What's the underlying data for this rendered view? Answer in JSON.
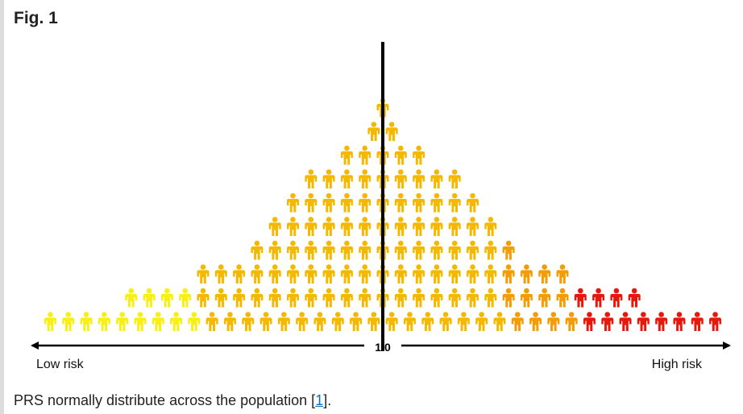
{
  "figure": {
    "label": "Fig. 1",
    "axis": {
      "center_label": "1.0",
      "left_label": "Low risk",
      "right_label": "High risk"
    },
    "rows_bottom_to_top": [
      38,
      29,
      21,
      15,
      13,
      11,
      9,
      5,
      2,
      1
    ],
    "colors": {
      "low": "#f7ef16",
      "mid": "#f5b800",
      "elevated": "#f39c06",
      "high": "#e8170b",
      "center_line": "#000000"
    }
  },
  "caption": {
    "text": "PRS normally distribute across the population [",
    "ref": "1",
    "suffix": "]."
  }
}
